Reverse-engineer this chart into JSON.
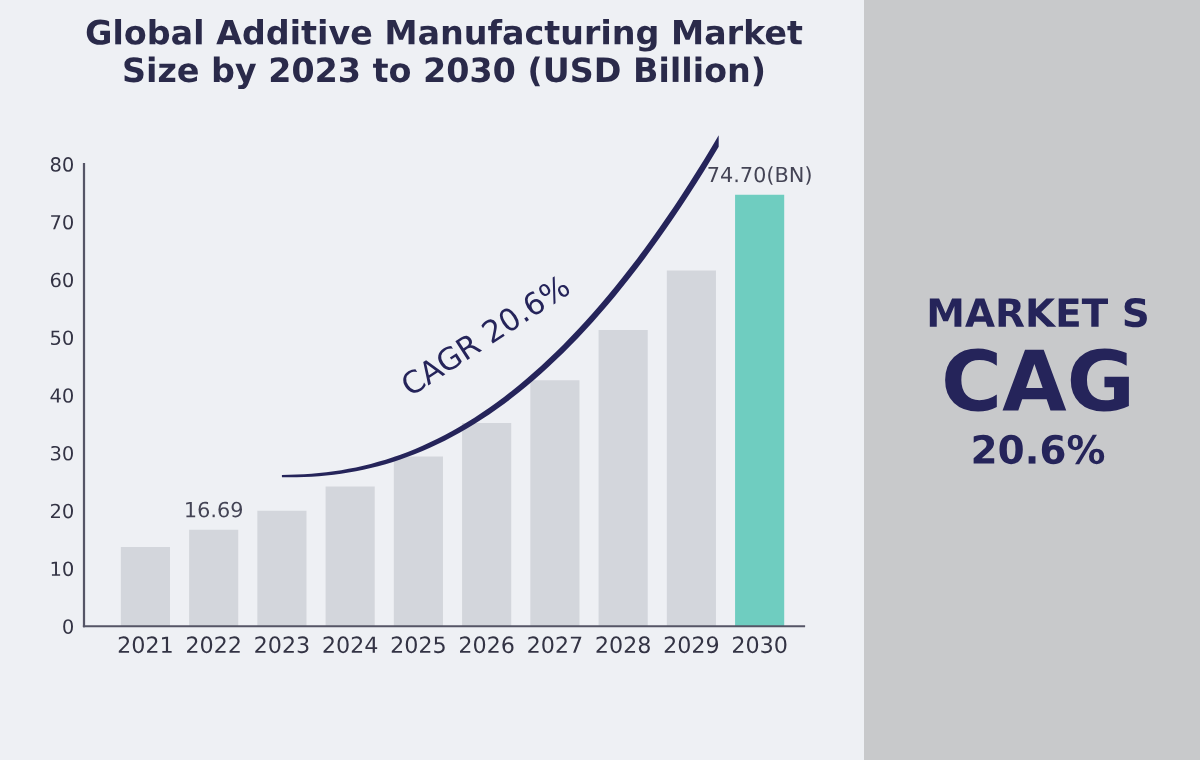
{
  "chart_data": {
    "type": "bar",
    "title": "Global Additive Manufacturing Market\nSize by 2023 to 2030 (USD Billion)",
    "categories": [
      "2021",
      "2022",
      "2023",
      "2024",
      "2025",
      "2026",
      "2027",
      "2028",
      "2029",
      "2030"
    ],
    "values": [
      13.7,
      16.69,
      20.0,
      24.2,
      29.4,
      35.2,
      42.6,
      51.3,
      61.6,
      74.7
    ],
    "colors": [
      "#d3d6dc",
      "#d3d6dc",
      "#d3d6dc",
      "#d3d6dc",
      "#d3d6dc",
      "#d3d6dc",
      "#d3d6dc",
      "#d3d6dc",
      "#d3d6dc",
      "#6fcdc0"
    ],
    "value_labels": [
      null,
      "16.69",
      null,
      null,
      null,
      null,
      null,
      null,
      null,
      "74.70(BN)"
    ],
    "ylim": [
      0,
      80
    ],
    "yticks": [
      0,
      10,
      20,
      30,
      40,
      50,
      60,
      70,
      80
    ],
    "grid": false,
    "annotations": [
      "CAGR 20.6%",
      "MARKET S",
      "CAG",
      "20.6%"
    ]
  }
}
